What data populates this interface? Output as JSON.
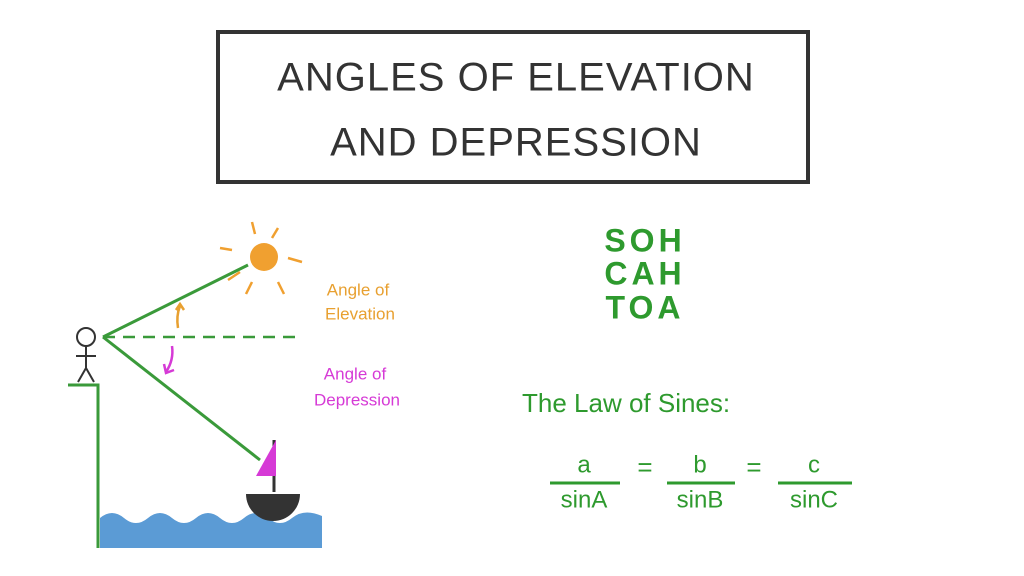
{
  "title": {
    "line1": "ANGLES OF ELEVATION",
    "line2": "AND DEPRESSION"
  },
  "diagram": {
    "elevation_label": [
      "Angle of",
      "Elevation"
    ],
    "depression_label": [
      "Angle of",
      "Depression"
    ]
  },
  "mnemonic": [
    "SOH",
    "CAH",
    "TOA"
  ],
  "law_of_sines": {
    "heading": "The Law of Sines:",
    "fractions": [
      {
        "numerator": "a",
        "denominator": "sinA"
      },
      {
        "numerator": "b",
        "denominator": "sinB"
      },
      {
        "numerator": "c",
        "denominator": "sinC"
      }
    ],
    "equals": "="
  }
}
